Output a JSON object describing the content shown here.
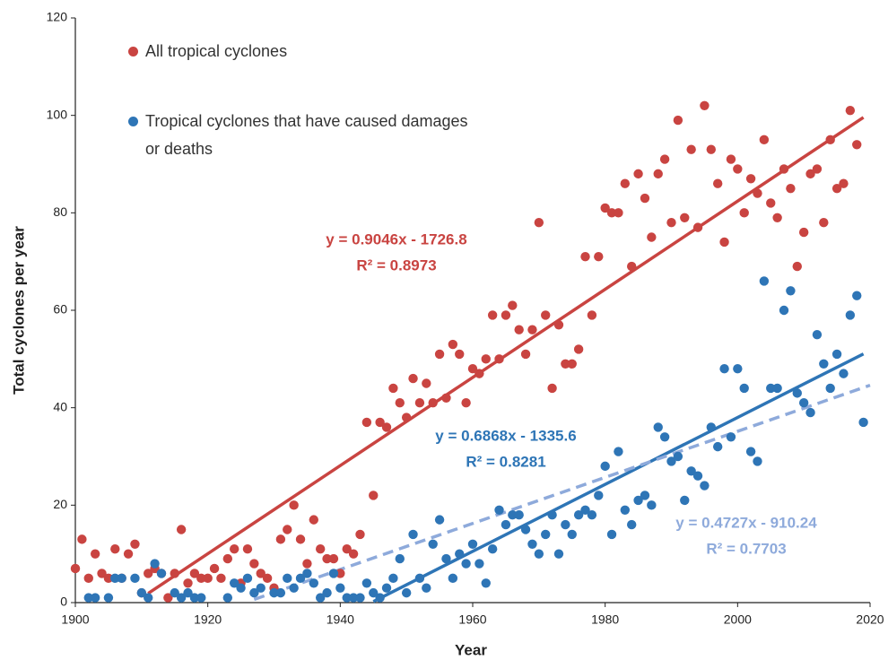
{
  "chart_data": {
    "type": "scatter",
    "x_label": "Year",
    "y_label": "Total cyclones per year",
    "xlim": [
      1900,
      2020
    ],
    "xticks": [
      1900,
      1920,
      1940,
      1960,
      1980,
      2000,
      2020
    ],
    "ylim": [
      0,
      120
    ],
    "yticks": [
      0,
      20,
      40,
      60,
      80,
      100,
      120
    ],
    "grid": false,
    "legend": "top-left",
    "series": [
      {
        "name": "All tropical cyclones",
        "color": "#c94441",
        "x": [
          1900,
          1901,
          1902,
          1903,
          1904,
          1905,
          1906,
          1907,
          1908,
          1909,
          1910,
          1911,
          1912,
          1913,
          1914,
          1915,
          1916,
          1917,
          1918,
          1919,
          1920,
          1921,
          1922,
          1923,
          1924,
          1925,
          1926,
          1927,
          1928,
          1929,
          1930,
          1931,
          1932,
          1933,
          1934,
          1935,
          1936,
          1937,
          1938,
          1939,
          1940,
          1941,
          1942,
          1943,
          1944,
          1945,
          1946,
          1947,
          1948,
          1949,
          1950,
          1951,
          1952,
          1953,
          1954,
          1955,
          1956,
          1957,
          1958,
          1959,
          1960,
          1961,
          1962,
          1963,
          1964,
          1965,
          1966,
          1967,
          1968,
          1969,
          1970,
          1971,
          1972,
          1973,
          1974,
          1975,
          1976,
          1977,
          1978,
          1979,
          1980,
          1981,
          1982,
          1983,
          1984,
          1985,
          1986,
          1987,
          1988,
          1989,
          1990,
          1991,
          1992,
          1993,
          1994,
          1995,
          1996,
          1997,
          1998,
          1999,
          2000,
          2001,
          2002,
          2003,
          2004,
          2005,
          2006,
          2007,
          2008,
          2009,
          2010,
          2011,
          2012,
          2013,
          2014,
          2015,
          2016,
          2017,
          2018
        ],
        "values": [
          7,
          13,
          5,
          10,
          6,
          5,
          11,
          5,
          10,
          12,
          2,
          6,
          7,
          6,
          1,
          6,
          15,
          4,
          6,
          5,
          5,
          7,
          5,
          9,
          11,
          4,
          11,
          8,
          6,
          5,
          3,
          13,
          15,
          20,
          13,
          8,
          17,
          11,
          9,
          9,
          6,
          11,
          10,
          14,
          37,
          22,
          37,
          36,
          44,
          41,
          38,
          46,
          41,
          45,
          41,
          51,
          42,
          53,
          51,
          41,
          48,
          47,
          50,
          59,
          50,
          59,
          61,
          56,
          51,
          56,
          78,
          59,
          44,
          57,
          49,
          49,
          52,
          71,
          59,
          71,
          81,
          80,
          80,
          86,
          69,
          88,
          83,
          75,
          88,
          91,
          78,
          99,
          79,
          93,
          77,
          102,
          93,
          86,
          74,
          91,
          89,
          80,
          87,
          84,
          95,
          82,
          79,
          89,
          85,
          69,
          76,
          88,
          89,
          78,
          95,
          85,
          86,
          101,
          94
        ]
      },
      {
        "name": "Tropical cyclones that have caused damages or deaths",
        "color": "#2e75b6",
        "x": [
          1902,
          1903,
          1905,
          1906,
          1907,
          1909,
          1910,
          1911,
          1912,
          1913,
          1915,
          1916,
          1917,
          1918,
          1919,
          1923,
          1924,
          1925,
          1926,
          1927,
          1928,
          1930,
          1931,
          1932,
          1933,
          1934,
          1935,
          1936,
          1937,
          1938,
          1939,
          1940,
          1941,
          1942,
          1943,
          1944,
          1945,
          1946,
          1947,
          1948,
          1949,
          1950,
          1951,
          1952,
          1953,
          1954,
          1955,
          1956,
          1957,
          1958,
          1959,
          1960,
          1961,
          1962,
          1963,
          1964,
          1965,
          1966,
          1967,
          1968,
          1969,
          1970,
          1971,
          1972,
          1973,
          1974,
          1975,
          1976,
          1977,
          1978,
          1979,
          1980,
          1981,
          1982,
          1983,
          1984,
          1985,
          1986,
          1987,
          1988,
          1989,
          1990,
          1991,
          1992,
          1993,
          1994,
          1995,
          1996,
          1997,
          1998,
          1999,
          2000,
          2001,
          2002,
          2003,
          2004,
          2005,
          2006,
          2007,
          2008,
          2009,
          2010,
          2011,
          2012,
          2013,
          2014,
          2015,
          2016,
          2017,
          2018,
          2019
        ],
        "values": [
          1,
          1,
          1,
          5,
          5,
          5,
          2,
          1,
          8,
          6,
          2,
          1,
          2,
          1,
          1,
          1,
          4,
          3,
          5,
          2,
          3,
          2,
          2,
          5,
          3,
          5,
          6,
          4,
          1,
          2,
          6,
          3,
          1,
          1,
          1,
          4,
          2,
          1,
          3,
          5,
          9,
          2,
          14,
          5,
          3,
          12,
          17,
          9,
          5,
          10,
          8,
          12,
          8,
          4,
          11,
          19,
          16,
          18,
          18,
          15,
          12,
          10,
          14,
          18,
          10,
          16,
          14,
          18,
          19,
          18,
          22,
          28,
          14,
          31,
          19,
          16,
          21,
          22,
          20,
          36,
          34,
          29,
          30,
          21,
          27,
          26,
          24,
          36,
          32,
          48,
          34,
          48,
          44,
          31,
          29,
          66,
          44,
          44,
          60,
          64,
          43,
          41,
          39,
          55,
          49,
          44,
          51,
          47,
          59,
          63,
          37
        ]
      }
    ],
    "trendlines": [
      {
        "equation": "y = 0.9046x - 1726.8",
        "r2": "R² = 0.8973",
        "slope": 0.9046,
        "intercept": -1726.8,
        "x": [
          1911,
          2019
        ],
        "color": "#c94441",
        "dashed": false
      },
      {
        "equation": "y = 0.6868x - 1335.6",
        "r2": "R² = 0.8281",
        "slope": 0.6868,
        "intercept": -1335.6,
        "x": [
          1945,
          2019
        ],
        "color": "#2e75b6",
        "dashed": false
      },
      {
        "equation": "y = 0.4727x - 910.24",
        "r2": "R² = 0.7703",
        "slope": 0.4727,
        "intercept": -910.24,
        "x": [
          1927,
          2020
        ],
        "color": "#8eaadb",
        "dashed": true
      }
    ]
  }
}
